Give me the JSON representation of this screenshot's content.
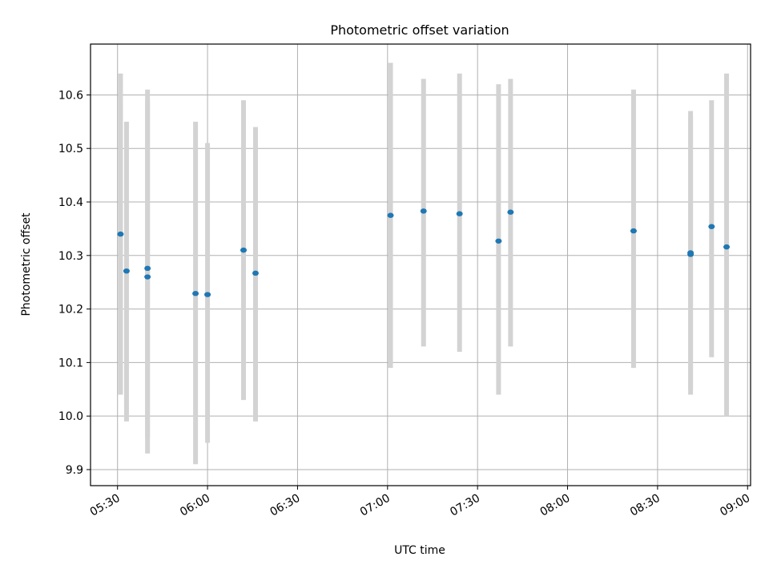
{
  "chart_data": {
    "type": "scatter",
    "title": "Photometric offset variation",
    "xlabel": "UTC time",
    "ylabel": "Photometric offset",
    "x_ticks": [
      "05:30",
      "06:00",
      "06:30",
      "07:00",
      "07:30",
      "08:00",
      "08:30",
      "09:00"
    ],
    "y_ticks": [
      "9.9",
      "10.0",
      "10.1",
      "10.2",
      "10.3",
      "10.4",
      "10.5",
      "10.6"
    ],
    "xlim": [
      "05:21",
      "09:01"
    ],
    "ylim": [
      9.87,
      10.695
    ],
    "grid": true,
    "errorbar_color": "#d3d3d3",
    "point_color": "#1f77b4",
    "points": [
      {
        "x": "05:31",
        "y": 10.34,
        "err_low": 10.04,
        "err_high": 10.64
      },
      {
        "x": "05:33",
        "y": 10.271,
        "err_low": 9.99,
        "err_high": 10.55
      },
      {
        "x": "05:40",
        "y": 10.276,
        "err_low": 9.96,
        "err_high": 10.61
      },
      {
        "x": "05:40",
        "y": 10.26,
        "err_low": 9.93,
        "err_high": 10.59
      },
      {
        "x": "05:56",
        "y": 10.229,
        "err_low": 9.91,
        "err_high": 10.55
      },
      {
        "x": "06:00",
        "y": 10.227,
        "err_low": 9.95,
        "err_high": 10.51
      },
      {
        "x": "06:12",
        "y": 10.31,
        "err_low": 10.03,
        "err_high": 10.59
      },
      {
        "x": "06:16",
        "y": 10.267,
        "err_low": 9.99,
        "err_high": 10.54
      },
      {
        "x": "07:01",
        "y": 10.375,
        "err_low": 10.09,
        "err_high": 10.66
      },
      {
        "x": "07:12",
        "y": 10.383,
        "err_low": 10.13,
        "err_high": 10.63
      },
      {
        "x": "07:24",
        "y": 10.378,
        "err_low": 10.12,
        "err_high": 10.64
      },
      {
        "x": "07:37",
        "y": 10.327,
        "err_low": 10.04,
        "err_high": 10.62
      },
      {
        "x": "07:41",
        "y": 10.381,
        "err_low": 10.13,
        "err_high": 10.63
      },
      {
        "x": "08:22",
        "y": 10.346,
        "err_low": 10.09,
        "err_high": 10.61
      },
      {
        "x": "08:41",
        "y": 10.302,
        "err_low": 10.04,
        "err_high": 10.56
      },
      {
        "x": "08:41",
        "y": 10.305,
        "err_low": 10.05,
        "err_high": 10.57
      },
      {
        "x": "08:48",
        "y": 10.354,
        "err_low": 10.11,
        "err_high": 10.59
      },
      {
        "x": "08:53",
        "y": 10.316,
        "err_low": 10.0,
        "err_high": 10.64
      }
    ]
  }
}
